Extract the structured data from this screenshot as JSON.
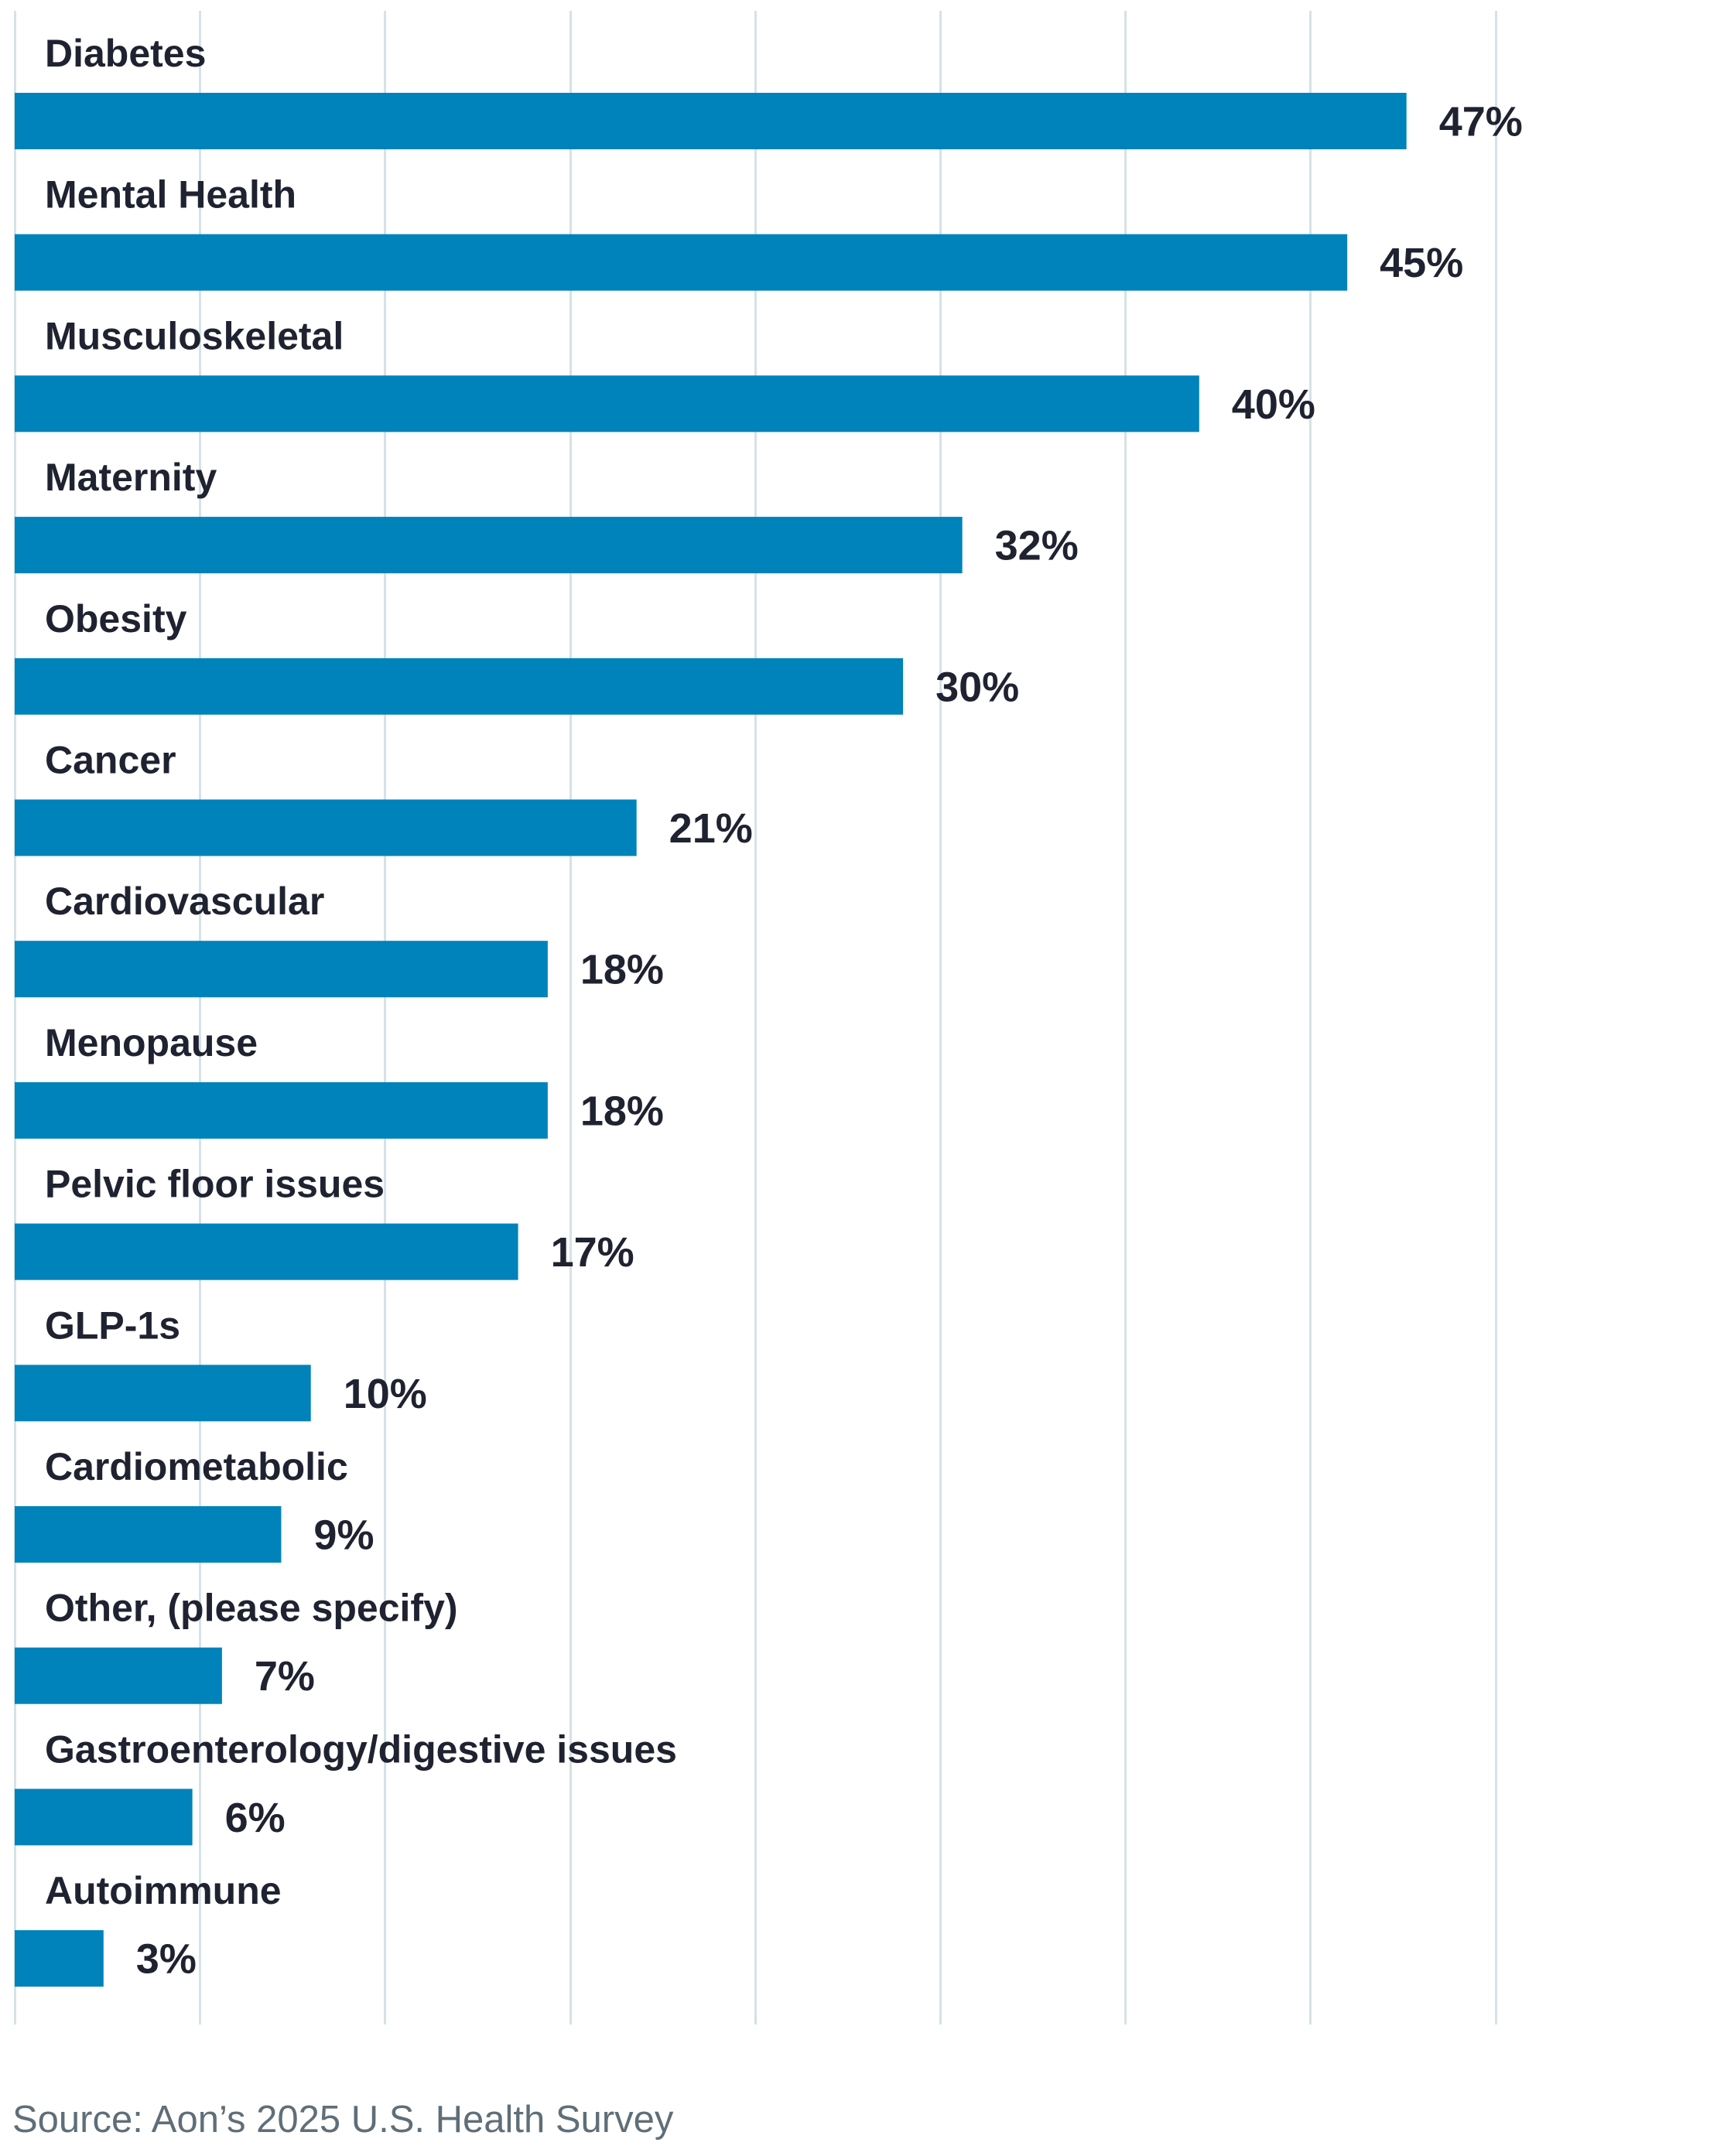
{
  "chart_data": {
    "type": "bar",
    "orientation": "horizontal",
    "categories": [
      "Diabetes",
      "Mental Health",
      "Musculoskeletal",
      "Maternity",
      "Obesity",
      "Cancer",
      "Cardiovascular",
      "Menopause",
      "Pelvic floor issues",
      "GLP-1s",
      "Cardiometabolic",
      "Other, (please specify)",
      "Gastroenterology/digestive issues",
      "Autoimmune"
    ],
    "values": [
      47,
      45,
      40,
      32,
      30,
      21,
      18,
      18,
      17,
      10,
      9,
      7,
      6,
      3
    ],
    "value_labels": [
      "47%",
      "45%",
      "40%",
      "32%",
      "30%",
      "21%",
      "18%",
      "18%",
      "17%",
      "10%",
      "9%",
      "7%",
      "6%",
      "3%"
    ],
    "xlim": [
      0,
      50
    ],
    "grid_step": 6.25,
    "grid": true,
    "bar_color": "#0082BA",
    "grid_color": "#D5E2E7",
    "text_color": "#1F2230"
  },
  "source": "Source: Aon’s 2025 U.S. Health Survey"
}
